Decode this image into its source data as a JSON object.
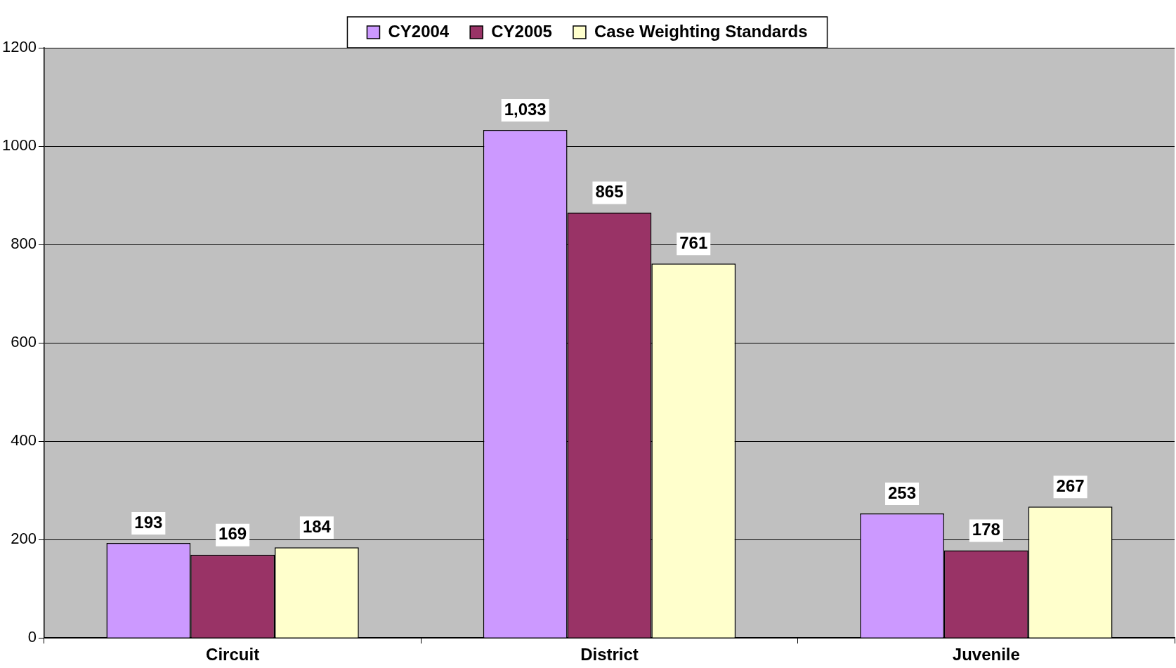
{
  "chart_data": {
    "type": "bar",
    "categories": [
      "Circuit",
      "District",
      "Juvenile"
    ],
    "series": [
      {
        "name": "CY2004",
        "color": "#cc99ff",
        "values": [
          193,
          1033,
          253
        ],
        "value_labels": [
          "193",
          "1,033",
          "253"
        ]
      },
      {
        "name": "CY2005",
        "color": "#993366",
        "values": [
          169,
          865,
          178
        ],
        "value_labels": [
          "169",
          "865",
          "178"
        ]
      },
      {
        "name": "Case Weighting Standards",
        "color": "#ffffcc",
        "values": [
          184,
          761,
          267
        ],
        "value_labels": [
          "184",
          "761",
          "267"
        ]
      }
    ],
    "ylim": [
      0,
      1200
    ],
    "yticks": [
      0,
      200,
      400,
      600,
      800,
      1000,
      1200
    ],
    "grid": "y",
    "legend": "top"
  }
}
